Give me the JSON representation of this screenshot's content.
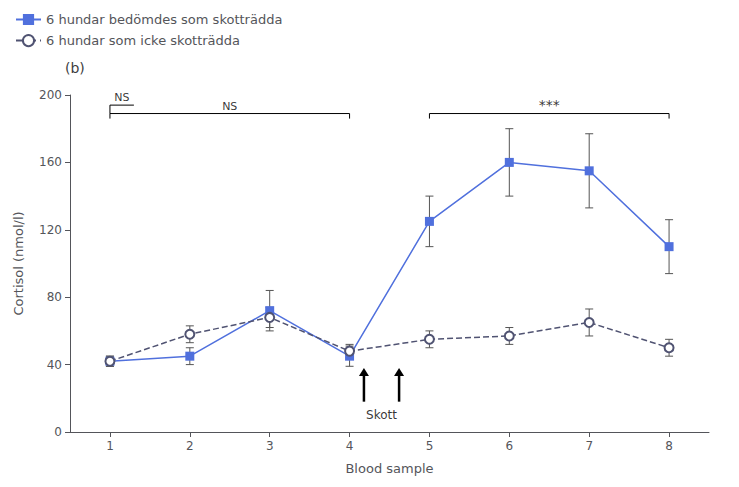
{
  "chart_data": {
    "type": "line",
    "title": "(b)",
    "xlabel": "Blood sample",
    "ylabel": "Cortisol (nmol/l)",
    "x": [
      1,
      2,
      3,
      4,
      5,
      6,
      7,
      8
    ],
    "xlim": [
      0.5,
      8.5
    ],
    "xticks": [
      1,
      2,
      3,
      4,
      5,
      6,
      7,
      8
    ],
    "ylim": [
      0,
      200
    ],
    "yticks": [
      0,
      40,
      80,
      120,
      160,
      200
    ],
    "grid": false,
    "legend": "upper left",
    "series": [
      {
        "name": "6 hundar bedömdes som skotträdda",
        "marker": "square",
        "line_style": "solid",
        "values": [
          42,
          45,
          72,
          45,
          125,
          160,
          155,
          110
        ],
        "yerr": [
          3,
          5,
          12,
          6,
          15,
          20,
          22,
          16
        ]
      },
      {
        "name": "6 hundar som icke skotträdda",
        "marker": "open_circle",
        "line_style": "dashed",
        "values": [
          42,
          58,
          68,
          48,
          55,
          57,
          65,
          50
        ],
        "yerr": [
          3,
          5,
          6,
          4,
          5,
          5,
          8,
          5
        ]
      }
    ],
    "annotations": [
      "NS",
      "NS",
      "***",
      "Skott"
    ]
  }
}
